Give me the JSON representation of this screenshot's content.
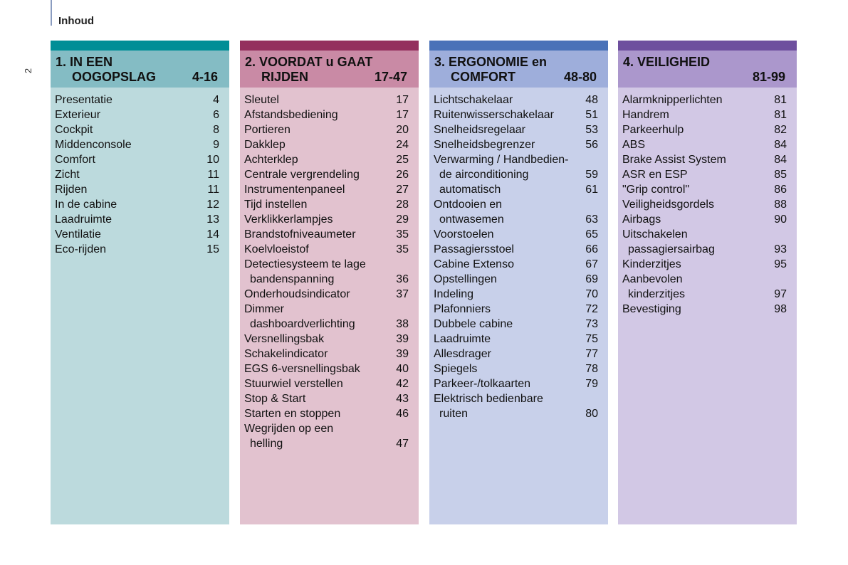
{
  "header": {
    "title": "Inhoud",
    "page_number": "2"
  },
  "sections": [
    {
      "line1": "1. IN EEN",
      "line2": "OOGOPSLAG",
      "pages": "4-16",
      "colors": {
        "bar": "#008e96",
        "head": "#84bcc4",
        "body": "#bcdadd"
      },
      "items": [
        {
          "t": "Presentatie",
          "p": "4"
        },
        {
          "t": "Exterieur",
          "p": "6"
        },
        {
          "t": "Cockpit",
          "p": "8"
        },
        {
          "t": "Middenconsole",
          "p": "9"
        },
        {
          "t": "Comfort",
          "p": "10"
        },
        {
          "t": "Zicht",
          "p": "11"
        },
        {
          "t": "Rijden",
          "p": "11"
        },
        {
          "t": "In de cabine",
          "p": "12"
        },
        {
          "t": "Laadruimte",
          "p": "13"
        },
        {
          "t": "Ventilatie",
          "p": "14"
        },
        {
          "t": "Eco-rijden",
          "p": "15"
        }
      ]
    },
    {
      "line1": "2. VOORDAT u GAAT",
      "line2": "RIJDEN",
      "pages": "17-47",
      "colors": {
        "bar": "#94305e",
        "head": "#c98aa5",
        "body": "#e2c2cf"
      },
      "items": [
        {
          "t": "Sleutel",
          "p": "17"
        },
        {
          "t": "Afstandsbediening",
          "p": "17"
        },
        {
          "t": "Portieren",
          "p": "20"
        },
        {
          "t": "Dakklep",
          "p": "24"
        },
        {
          "t": "Achterklep",
          "p": "25"
        },
        {
          "t": "Centrale vergrendeling",
          "p": "26"
        },
        {
          "t": "Instrumentenpaneel",
          "p": "27"
        },
        {
          "t": "Tijd instellen",
          "p": "28"
        },
        {
          "t": "Verklikkerlampjes",
          "p": "29"
        },
        {
          "t": "Brandstofniveaumeter",
          "p": "35"
        },
        {
          "t": "Koelvloeistof",
          "p": "35"
        },
        {
          "t": "Detectiesysteem te lage",
          "p": ""
        },
        {
          "t": "bandenspanning",
          "p": "36",
          "cont": true
        },
        {
          "t": "Onderhoudsindicator",
          "p": "37"
        },
        {
          "t": "Dimmer",
          "p": ""
        },
        {
          "t": "dashboardverlichting",
          "p": "38",
          "cont": true
        },
        {
          "t": "Versnellingsbak",
          "p": "39"
        },
        {
          "t": "Schakelindicator",
          "p": "39"
        },
        {
          "t": "EGS 6-versnellingsbak",
          "p": "40"
        },
        {
          "t": "Stuurwiel verstellen",
          "p": "42"
        },
        {
          "t": "Stop & Start",
          "p": "43"
        },
        {
          "t": "Starten en stoppen",
          "p": "46"
        },
        {
          "t": "Wegrijden op een",
          "p": ""
        },
        {
          "t": "helling",
          "p": "47",
          "cont": true
        }
      ]
    },
    {
      "line1": "3. ERGONOMIE en",
      "line2": "COMFORT",
      "pages": "48-80",
      "colors": {
        "bar": "#4a72b8",
        "head": "#9eaedb",
        "body": "#c8d0ea"
      },
      "items": [
        {
          "t": "Lichtschakelaar",
          "p": "48"
        },
        {
          "t": "Ruitenwisserschakelaar",
          "p": "51"
        },
        {
          "t": "Snelheidsregelaar",
          "p": "53"
        },
        {
          "t": "Snelheidsbegrenzer",
          "p": "56"
        },
        {
          "t": "Verwarming / Handbedien-",
          "p": ""
        },
        {
          "t": "de airconditioning",
          "p": "59",
          "cont": true
        },
        {
          "t": "automatisch",
          "p": "61",
          "cont": true
        },
        {
          "t": "Ontdooien en",
          "p": ""
        },
        {
          "t": "ontwasemen",
          "p": "63",
          "cont": true
        },
        {
          "t": "Voorstoelen",
          "p": "65"
        },
        {
          "t": "Passagiersstoel",
          "p": "66"
        },
        {
          "t": "Cabine Extenso",
          "p": "67"
        },
        {
          "t": "Opstellingen",
          "p": "69"
        },
        {
          "t": "Indeling",
          "p": "70"
        },
        {
          "t": "Plafonniers",
          "p": "72"
        },
        {
          "t": "Dubbele cabine",
          "p": "73"
        },
        {
          "t": "Laadruimte",
          "p": "75"
        },
        {
          "t": "Allesdrager",
          "p": "77"
        },
        {
          "t": "Spiegels",
          "p": "78"
        },
        {
          "t": "Parkeer-/tolkaarten",
          "p": "79"
        },
        {
          "t": "Elektrisch bedienbare",
          "p": ""
        },
        {
          "t": "ruiten",
          "p": "80",
          "cont": true
        }
      ]
    },
    {
      "line1": "4. VEILIGHEID",
      "line2": "",
      "pages": "81-99",
      "colors": {
        "bar": "#6e4f9e",
        "head": "#ab97cc",
        "body": "#d2c8e5"
      },
      "items": [
        {
          "t": "Alarmknipperlichten",
          "p": "81"
        },
        {
          "t": "Handrem",
          "p": "81"
        },
        {
          "t": "Parkeerhulp",
          "p": "82"
        },
        {
          "t": "ABS",
          "p": "84"
        },
        {
          "t": "Brake Assist System",
          "p": "84"
        },
        {
          "t": "ASR en ESP",
          "p": "85"
        },
        {
          "t": "\"Grip control\"",
          "p": "86"
        },
        {
          "t": "Veiligheidsgordels",
          "p": "88"
        },
        {
          "t": "Airbags",
          "p": "90"
        },
        {
          "t": "Uitschakelen",
          "p": ""
        },
        {
          "t": "passagiersairbag",
          "p": "93",
          "cont": true
        },
        {
          "t": "Kinderzitjes",
          "p": "95"
        },
        {
          "t": "Aanbevolen",
          "p": ""
        },
        {
          "t": "kinderzitjes",
          "p": "97",
          "cont": true
        },
        {
          "t": "Bevestiging",
          "p": "98"
        }
      ]
    }
  ]
}
